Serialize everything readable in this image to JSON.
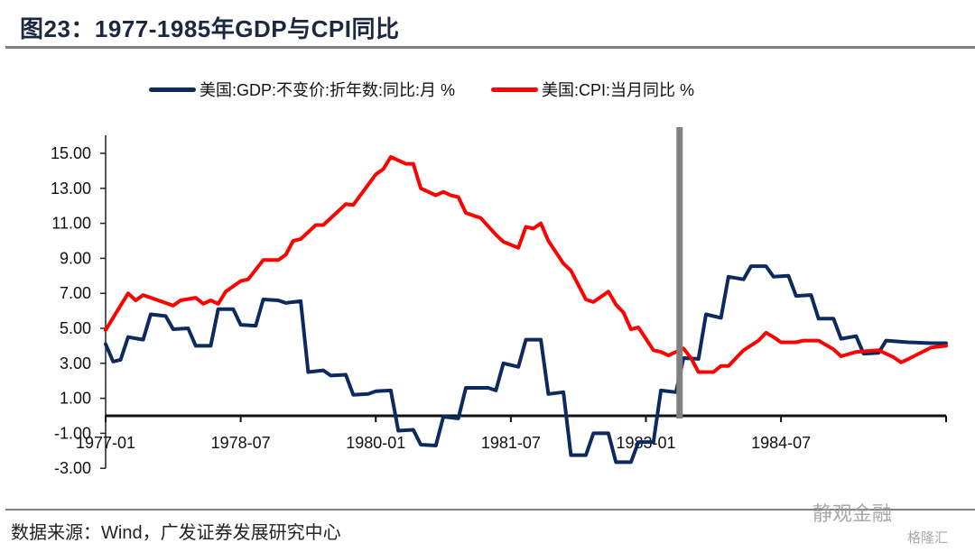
{
  "title": "图23：1977-1985年GDP与CPI同比",
  "source": "数据来源：Wind，广发证券发展研究中心",
  "watermarks": [
    "静观金融",
    "格隆汇"
  ],
  "chart_data": {
    "type": "line",
    "title": "",
    "xlabel": "",
    "ylabel": "",
    "xlim": [
      "1977-01",
      "1986-05"
    ],
    "ylim": [
      -3,
      16
    ],
    "y_ticks": [
      "15.00",
      "13.00",
      "11.00",
      "9.00",
      "7.00",
      "5.00",
      "3.00",
      "1.00",
      "-1.00",
      "-3.00"
    ],
    "y_tick_values": [
      15,
      13,
      11,
      9,
      7,
      5,
      3,
      1,
      -1,
      -3
    ],
    "x_ticks": [
      "1977-01",
      "1978-07",
      "1980-01",
      "1981-07",
      "1983-01",
      "1984-07"
    ],
    "grid": false,
    "legend_position": "top",
    "marker_line": {
      "date": "1983-05",
      "color": "#808080"
    },
    "series": [
      {
        "name": "美国:GDP:不变价:折年数:同比:月 %",
        "color": "#0d2a5e",
        "points": [
          [
            "1977-01",
            4.1
          ],
          [
            "1977-02",
            3.1
          ],
          [
            "1977-03",
            3.2
          ],
          [
            "1977-04",
            4.5
          ],
          [
            "1977-06",
            4.35
          ],
          [
            "1977-07",
            5.8
          ],
          [
            "1977-09",
            5.7
          ],
          [
            "1977-10",
            4.95
          ],
          [
            "1977-12",
            5.0
          ],
          [
            "1978-01",
            4.0
          ],
          [
            "1978-03",
            4.0
          ],
          [
            "1978-04",
            6.1
          ],
          [
            "1978-06",
            6.1
          ],
          [
            "1978-07",
            5.2
          ],
          [
            "1978-09",
            5.15
          ],
          [
            "1978-10",
            6.65
          ],
          [
            "1978-12",
            6.6
          ],
          [
            "1979-01",
            6.45
          ],
          [
            "1979-03",
            6.55
          ],
          [
            "1979-04",
            2.5
          ],
          [
            "1979-06",
            2.6
          ],
          [
            "1979-07",
            2.3
          ],
          [
            "1979-09",
            2.35
          ],
          [
            "1979-10",
            1.2
          ],
          [
            "1979-12",
            1.25
          ],
          [
            "1980-01",
            1.4
          ],
          [
            "1980-03",
            1.45
          ],
          [
            "1980-04",
            -0.85
          ],
          [
            "1980-06",
            -0.8
          ],
          [
            "1980-07",
            -1.65
          ],
          [
            "1980-09",
            -1.7
          ],
          [
            "1980-10",
            -0.05
          ],
          [
            "1980-12",
            -0.15
          ],
          [
            "1981-01",
            1.6
          ],
          [
            "1981-04",
            1.6
          ],
          [
            "1981-05",
            1.45
          ],
          [
            "1981-06",
            3.0
          ],
          [
            "1981-08",
            2.8
          ],
          [
            "1981-09",
            4.35
          ],
          [
            "1981-11",
            4.35
          ],
          [
            "1981-12",
            1.25
          ],
          [
            "1982-02",
            1.35
          ],
          [
            "1982-03",
            -2.25
          ],
          [
            "1982-05",
            -2.25
          ],
          [
            "1982-06",
            -1.0
          ],
          [
            "1982-08",
            -1.0
          ],
          [
            "1982-09",
            -2.65
          ],
          [
            "1982-11",
            -2.65
          ],
          [
            "1982-12",
            -1.5
          ],
          [
            "1983-02",
            -1.5
          ],
          [
            "1983-03",
            1.45
          ],
          [
            "1983-05",
            1.35
          ],
          [
            "1983-06",
            3.3
          ],
          [
            "1983-08",
            3.25
          ],
          [
            "1983-09",
            5.8
          ],
          [
            "1983-11",
            5.6
          ],
          [
            "1983-12",
            7.95
          ],
          [
            "1984-02",
            7.8
          ],
          [
            "1984-03",
            8.55
          ],
          [
            "1984-05",
            8.55
          ],
          [
            "1984-06",
            7.95
          ],
          [
            "1984-08",
            8.0
          ],
          [
            "1984-09",
            6.85
          ],
          [
            "1984-11",
            6.9
          ],
          [
            "1984-12",
            5.55
          ],
          [
            "1985-02",
            5.55
          ],
          [
            "1985-03",
            4.4
          ],
          [
            "1985-05",
            4.55
          ],
          [
            "1985-06",
            3.55
          ],
          [
            "1985-08",
            3.6
          ],
          [
            "1985-09",
            4.3
          ],
          [
            "1985-12",
            4.2
          ],
          [
            "1986-03",
            4.15
          ],
          [
            "1986-05",
            4.15
          ]
        ]
      },
      {
        "name": "美国:CPI:当月同比 %",
        "color": "#ff0000",
        "points": [
          [
            "1977-01",
            4.9
          ],
          [
            "1977-04",
            7.0
          ],
          [
            "1977-05",
            6.6
          ],
          [
            "1977-06",
            6.9
          ],
          [
            "1977-08",
            6.6
          ],
          [
            "1977-10",
            6.3
          ],
          [
            "1977-11",
            6.6
          ],
          [
            "1978-01",
            6.75
          ],
          [
            "1978-02",
            6.4
          ],
          [
            "1978-03",
            6.6
          ],
          [
            "1978-04",
            6.4
          ],
          [
            "1978-05",
            7.1
          ],
          [
            "1978-07",
            7.7
          ],
          [
            "1978-08",
            7.8
          ],
          [
            "1978-10",
            8.9
          ],
          [
            "1978-12",
            8.9
          ],
          [
            "1979-01",
            9.2
          ],
          [
            "1979-02",
            10.0
          ],
          [
            "1979-03",
            10.1
          ],
          [
            "1979-05",
            10.9
          ],
          [
            "1979-06",
            10.9
          ],
          [
            "1979-09",
            12.1
          ],
          [
            "1979-10",
            12.05
          ],
          [
            "1980-01",
            13.8
          ],
          [
            "1980-02",
            14.1
          ],
          [
            "1980-03",
            14.8
          ],
          [
            "1980-04",
            14.6
          ],
          [
            "1980-05",
            14.4
          ],
          [
            "1980-06",
            14.4
          ],
          [
            "1980-07",
            13.0
          ],
          [
            "1980-08",
            12.8
          ],
          [
            "1980-09",
            12.6
          ],
          [
            "1980-10",
            12.8
          ],
          [
            "1980-11",
            12.6
          ],
          [
            "1980-12",
            12.5
          ],
          [
            "1981-01",
            11.6
          ],
          [
            "1981-03",
            11.3
          ],
          [
            "1981-05",
            10.35
          ],
          [
            "1981-06",
            9.95
          ],
          [
            "1981-08",
            9.6
          ],
          [
            "1981-09",
            10.8
          ],
          [
            "1981-10",
            10.7
          ],
          [
            "1981-11",
            11.0
          ],
          [
            "1981-12",
            10.0
          ],
          [
            "1982-02",
            8.7
          ],
          [
            "1982-03",
            8.3
          ],
          [
            "1982-05",
            6.65
          ],
          [
            "1982-06",
            6.5
          ],
          [
            "1982-08",
            7.1
          ],
          [
            "1982-09",
            6.35
          ],
          [
            "1982-10",
            5.9
          ],
          [
            "1982-11",
            4.95
          ],
          [
            "1982-12",
            5.05
          ],
          [
            "1983-01",
            4.4
          ],
          [
            "1983-02",
            3.75
          ],
          [
            "1983-03",
            3.65
          ],
          [
            "1983-04",
            3.45
          ],
          [
            "1983-06",
            3.85
          ],
          [
            "1983-07",
            3.3
          ],
          [
            "1983-08",
            2.5
          ],
          [
            "1983-10",
            2.5
          ],
          [
            "1983-11",
            2.85
          ],
          [
            "1983-12",
            2.85
          ],
          [
            "1984-02",
            3.75
          ],
          [
            "1984-04",
            4.3
          ],
          [
            "1984-05",
            4.75
          ],
          [
            "1984-06",
            4.5
          ],
          [
            "1984-07",
            4.2
          ],
          [
            "1984-09",
            4.2
          ],
          [
            "1984-10",
            4.3
          ],
          [
            "1984-12",
            4.3
          ],
          [
            "1985-02",
            3.8
          ],
          [
            "1985-03",
            3.4
          ],
          [
            "1985-05",
            3.65
          ],
          [
            "1985-08",
            3.75
          ],
          [
            "1985-10",
            3.35
          ],
          [
            "1985-11",
            3.05
          ],
          [
            "1985-12",
            3.25
          ],
          [
            "1986-03",
            3.9
          ],
          [
            "1986-05",
            4.0
          ]
        ]
      }
    ]
  }
}
